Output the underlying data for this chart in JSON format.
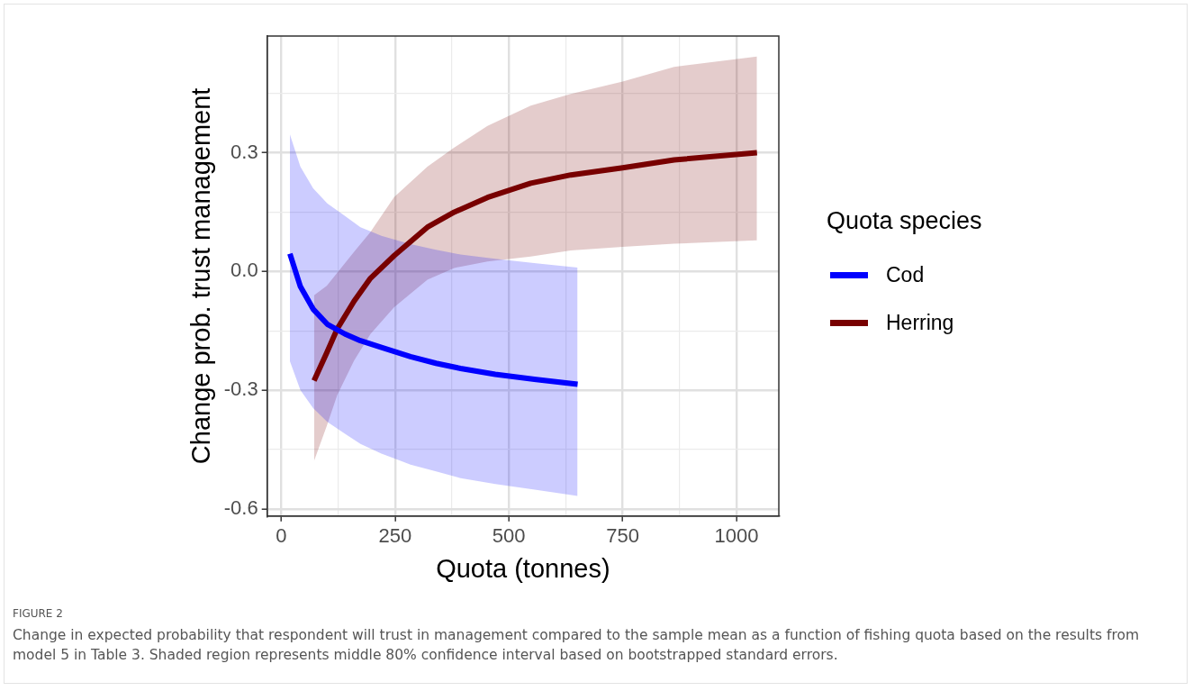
{
  "chart_data": {
    "type": "line",
    "xlabel": "Quota (tonnes)",
    "ylabel": "Change prob. trust management",
    "legend_title": "Quota species",
    "legend": "right",
    "grid": true,
    "marker": "none",
    "line_style": "solid",
    "xlim": [
      -31,
      1093
    ],
    "xticks": [
      0,
      {
        "value": 125,
        "label": null
      },
      250,
      {
        "value": 375,
        "label": null
      },
      500,
      {
        "value": 625,
        "label": null
      },
      750,
      {
        "value": 875,
        "label": null
      },
      1000
    ],
    "ylim": [
      -0.618,
      0.595
    ],
    "yticks": [
      {
        "value": -0.6,
        "label": "-0.6"
      },
      {
        "value": -0.45,
        "label": null
      },
      {
        "value": -0.3,
        "label": "-0.3"
      },
      {
        "value": -0.15,
        "label": null
      },
      {
        "value": 0,
        "label": "0.0"
      },
      {
        "value": 0.15,
        "label": null
      },
      {
        "value": 0.3,
        "label": "0.3"
      },
      {
        "value": 0.45,
        "label": null
      }
    ],
    "series": [
      {
        "name": "Cod",
        "color": "#0000ff",
        "x": [
          19,
          42,
          70,
          101,
          140,
          174,
          220,
          284,
          340,
          394,
          470,
          560,
          651
        ],
        "values": [
          0.045,
          -0.038,
          -0.095,
          -0.133,
          -0.158,
          -0.175,
          -0.192,
          -0.215,
          -0.232,
          -0.245,
          -0.26,
          -0.273,
          -0.285
        ],
        "lower": [
          -0.227,
          -0.3,
          -0.345,
          -0.38,
          -0.41,
          -0.436,
          -0.46,
          -0.488,
          -0.505,
          -0.522,
          -0.537,
          -0.552,
          -0.567
        ],
        "upper": [
          0.346,
          0.265,
          0.21,
          0.172,
          0.14,
          0.112,
          0.09,
          0.069,
          0.055,
          0.043,
          0.032,
          0.021,
          0.01
        ]
      },
      {
        "name": "Herring",
        "color": "#780000",
        "x": [
          72,
          100,
          123,
          160,
          196,
          248,
          321,
          380,
          453,
          548,
          636,
          750,
          863,
          1045
        ],
        "values": [
          -0.276,
          -0.205,
          -0.145,
          -0.075,
          -0.017,
          0.04,
          0.112,
          0.15,
          0.187,
          0.223,
          0.244,
          0.262,
          0.282,
          0.3
        ],
        "lower": [
          -0.479,
          -0.39,
          -0.312,
          -0.225,
          -0.158,
          -0.09,
          -0.021,
          0.009,
          0.025,
          0.038,
          0.053,
          0.062,
          0.07,
          0.079
        ],
        "upper": [
          -0.06,
          -0.036,
          -0.003,
          0.05,
          0.1,
          0.188,
          0.265,
          0.313,
          0.368,
          0.419,
          0.449,
          0.48,
          0.517,
          0.543
        ]
      }
    ],
    "annotations": [
      "FIGURE 2",
      "Change in expected probability that respondent will trust in management compared to the sample mean as a function of fishing quota based on the results from model 5 in Table 3. Shaded region represents middle 80% confidence interval based on bootstrapped standard errors."
    ]
  }
}
